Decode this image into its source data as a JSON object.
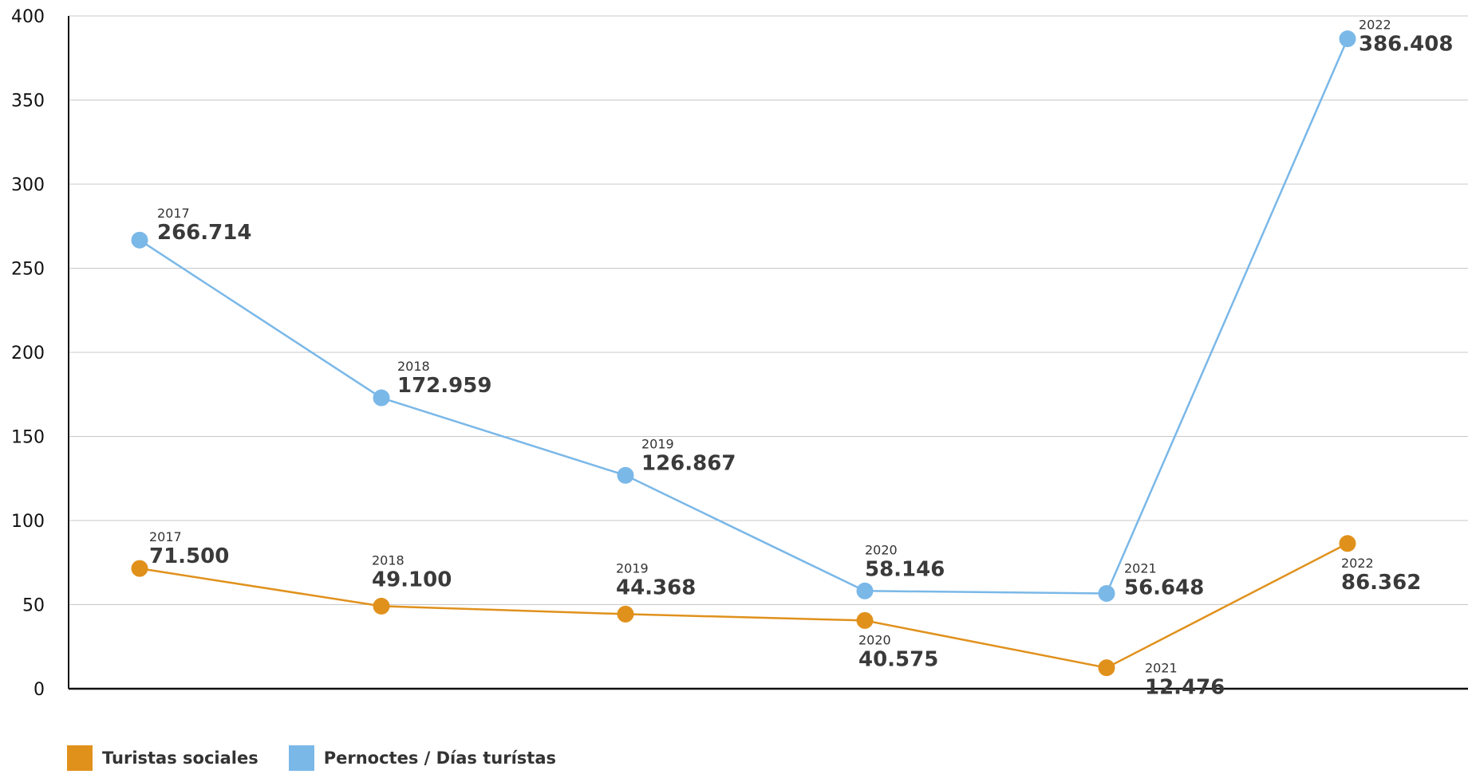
{
  "chart_data": {
    "type": "line",
    "title": "",
    "xlabel": "",
    "ylabel": "",
    "ylim": [
      0,
      400
    ],
    "yticks": [
      "0",
      "50",
      "100",
      "150",
      "200",
      "250",
      "300",
      "350",
      "400"
    ],
    "grid": true,
    "legend_position": "bottom-left",
    "x": [
      "2017",
      "2018",
      "2019",
      "2020",
      "2021",
      "2022"
    ],
    "series": [
      {
        "name": "Turistas sociales",
        "color": "#e0911c",
        "values": [
          71.5,
          49.1,
          44.368,
          40.575,
          12.476,
          86.362
        ],
        "labels": [
          "71.500",
          "49.100",
          "44.368",
          "40.575",
          "12.476",
          "86.362"
        ]
      },
      {
        "name": "Pernoctes / Días turístas",
        "color": "#7ab8e8",
        "values": [
          266.714,
          172.959,
          126.867,
          58.146,
          56.648,
          386.408
        ],
        "labels": [
          "266.714",
          "172.959",
          "126.867",
          "58.146",
          "56.648",
          "386.408"
        ]
      }
    ]
  }
}
